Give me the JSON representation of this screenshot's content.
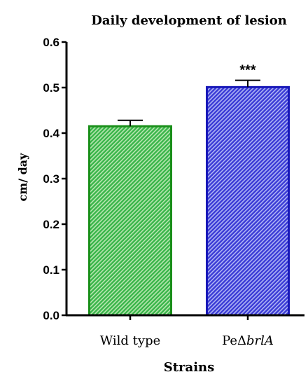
{
  "chart_data": {
    "type": "bar",
    "title": "Daily development of lesion",
    "xlabel": "Strains",
    "ylabel": "cm/ day",
    "ylim": [
      0,
      0.6
    ],
    "yticks": [
      "0.0",
      "0.1",
      "0.2",
      "0.3",
      "0.4",
      "0.5",
      "0.6"
    ],
    "grid": false,
    "categories": [
      {
        "prefix": "Wild type",
        "italic": ""
      },
      {
        "prefix": "PeΔ",
        "italic": "brlA"
      }
    ],
    "values": [
      0.415,
      0.501
    ],
    "errors": [
      0.013,
      0.015
    ],
    "annotations": [
      "",
      "***"
    ],
    "colors": {
      "fill": [
        "#39b54a",
        "#3a3ad6"
      ],
      "stripe": [
        "#b8e6b0",
        "#aeb4f4"
      ],
      "edge": [
        "#1a8f1a",
        "#1818b8"
      ]
    }
  }
}
